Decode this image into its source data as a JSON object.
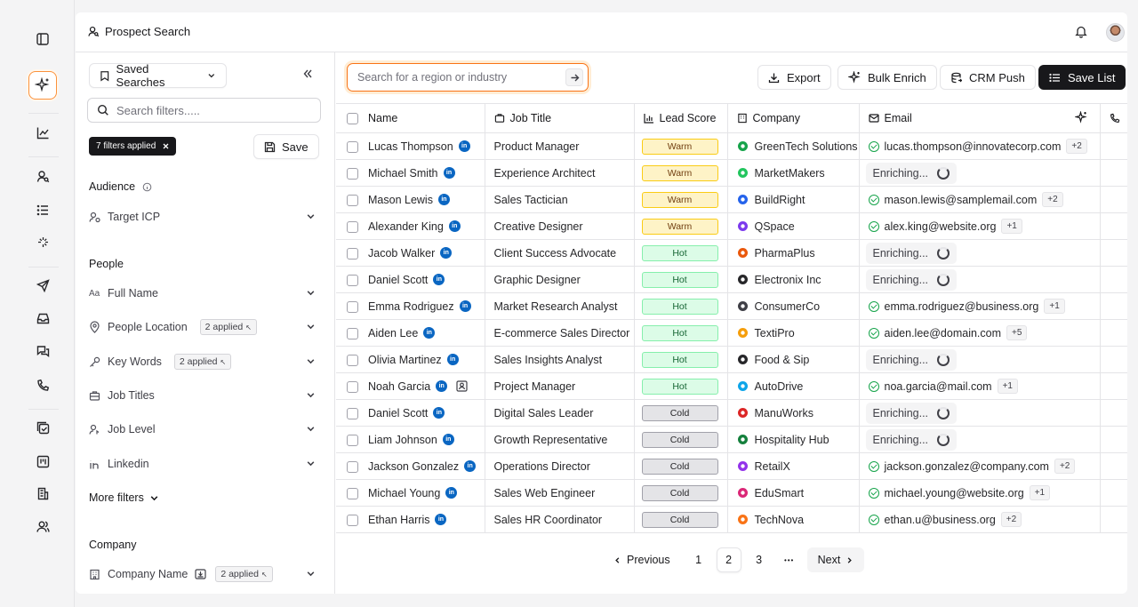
{
  "header": {
    "title": "Prospect Search"
  },
  "filters": {
    "saved_searches_label": "Saved Searches",
    "search_placeholder": "Search filters.....",
    "applied_chip": "7 filters applied",
    "save_label": "Save",
    "audience": {
      "title": "Audience",
      "target_icp": "Target ICP"
    },
    "people": {
      "title": "People",
      "full_name": "Full Name",
      "location": "People Location",
      "location_badge": "2 applied",
      "key_words": "Key Words",
      "key_words_badge": "2 applied",
      "job_titles": "Job Titles",
      "job_level": "Job Level",
      "linkedin": "Linkedin"
    },
    "more_filters": "More filters",
    "company": {
      "title": "Company",
      "company_name": "Company Name",
      "company_name_badge": "2 applied"
    }
  },
  "toolbar": {
    "search_placeholder": "Search for a region or industry",
    "export": "Export",
    "bulk_enrich": "Bulk Enrich",
    "crm_push": "CRM Push",
    "save_list": "Save List"
  },
  "table": {
    "columns": {
      "name": "Name",
      "job_title": "Job Title",
      "lead_score": "Lead Score",
      "company": "Company",
      "email": "Email"
    },
    "enriching_label": "Enriching...",
    "rows": [
      {
        "name": "Lucas Thompson",
        "title": "Product Manager",
        "score": "Warm",
        "company": "GreenTech Solutions",
        "email": "lucas.thompson@innovatecorp.com",
        "extra": "+2"
      },
      {
        "name": "Michael Smith",
        "title": "Experience Architect",
        "score": "Warm",
        "company": "MarketMakers",
        "email": "",
        "extra": ""
      },
      {
        "name": "Mason Lewis",
        "title": "Sales Tactician",
        "score": "Warm",
        "company": "BuildRight",
        "email": "mason.lewis@samplemail.com",
        "extra": "+2"
      },
      {
        "name": "Alexander King",
        "title": "Creative Designer",
        "score": "Warm",
        "company": "QSpace",
        "email": "alex.king@website.org",
        "extra": "+1"
      },
      {
        "name": "Jacob Walker",
        "title": "Client Success Advocate",
        "score": "Hot",
        "company": "PharmaPlus",
        "email": "",
        "extra": ""
      },
      {
        "name": "Daniel Scott",
        "title": "Graphic Designer",
        "score": "Hot",
        "company": "Electronix Inc",
        "email": "",
        "extra": ""
      },
      {
        "name": "Emma Rodriguez",
        "title": "Market Research Analyst",
        "score": "Hot",
        "company": "ConsumerCo",
        "email": "emma.rodriguez@business.org",
        "extra": "+1"
      },
      {
        "name": "Aiden Lee",
        "title": "E-commerce Sales Director",
        "score": "Hot",
        "company": "TextiPro",
        "email": "aiden.lee@domain.com",
        "extra": "+5"
      },
      {
        "name": "Olivia Martinez",
        "title": "Sales Insights Analyst",
        "score": "Hot",
        "company": "Food & Sip",
        "email": "",
        "extra": ""
      },
      {
        "name": "Noah Garcia",
        "title": "Project Manager",
        "score": "Hot",
        "company": "AutoDrive",
        "email": "noa.garcia@mail.com",
        "extra": "+1"
      },
      {
        "name": "Daniel Scott",
        "title": "Digital Sales Leader",
        "score": "Cold",
        "company": "ManuWorks",
        "email": "",
        "extra": ""
      },
      {
        "name": "Liam Johnson",
        "title": "Growth Representative",
        "score": "Cold",
        "company": "Hospitality Hub",
        "email": "",
        "extra": ""
      },
      {
        "name": "Jackson Gonzalez",
        "title": "Operations Director",
        "score": "Cold",
        "company": "RetailX",
        "email": "jackson.gonzalez@company.com",
        "extra": "+2"
      },
      {
        "name": "Michael Young",
        "title": "Sales Web Engineer",
        "score": "Cold",
        "company": "EduSmart",
        "email": "michael.young@website.org",
        "extra": "+1"
      },
      {
        "name": "Ethan Harris",
        "title": "Sales HR Coordinator",
        "score": "Cold",
        "company": "TechNova",
        "email": "ethan.u@business.org",
        "extra": "+2"
      }
    ]
  },
  "company_logo_colors": [
    "#16a34a",
    "#22c55e",
    "#2563eb",
    "#7c3aed",
    "#ea580c",
    "#27272a",
    "#3f3f46",
    "#f59e0b",
    "#27272a",
    "#0ea5e9",
    "#dc2626",
    "#15803d",
    "#9333ea",
    "#db2777",
    "#f97316"
  ],
  "pagination": {
    "previous": "Previous",
    "pages": [
      "1",
      "2",
      "3"
    ],
    "current": "2",
    "ellipsis": "•••",
    "next": "Next"
  }
}
